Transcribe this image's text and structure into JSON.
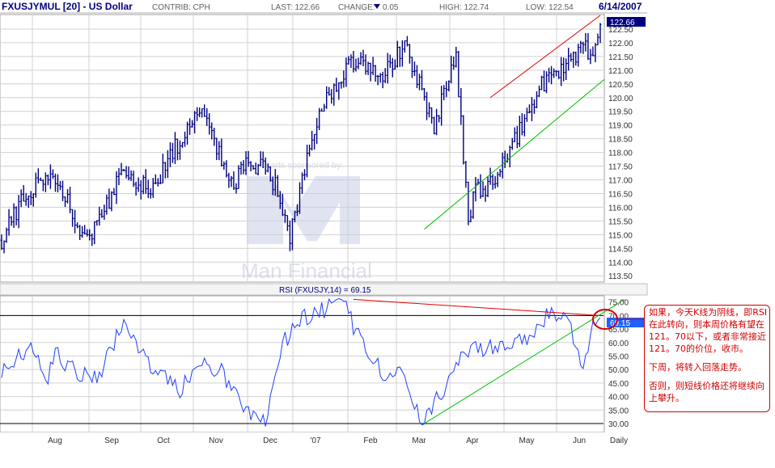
{
  "header": {
    "symbol": "FXUSJYMUL [20] - US Dollar",
    "contrib": "CONTRIB: CPH",
    "last": "LAST: 122.66",
    "change_label": "CHANGE:",
    "change_value": "0.05",
    "high": "HIGH: 122.74",
    "low": "LOW: 122.54",
    "date": "6/14/2007"
  },
  "colors": {
    "price": "#000080",
    "upper_channel": "#e00000",
    "lower_channel": "#00c000",
    "annotation": "#d00000",
    "grid": "#d0d0d0"
  },
  "watermark": {
    "sponsor": "Charts sponsored by:",
    "brand": "Man Financial"
  },
  "rsi_label": "RSI (FXUSJY,14) = 69.15",
  "last_price_tag": "122.66",
  "rsi_tag": "69.15",
  "x_period": "Daily",
  "note": {
    "p1": "如果，今天K线为阴线，即RSI在此转向，则本周价格有望在121。70以下，或者非常接近121。70的价位，收市。",
    "p2": "下周，将转入回落走势。",
    "p3": "否则，则短线价格还将继续向上攀升。"
  },
  "chart_data": [
    {
      "type": "line",
      "title": "FXUSJYMUL [20] - US Dollar",
      "y_ticks": [
        "113.50",
        "114.00",
        "114.50",
        "115.00",
        "115.50",
        "116.00",
        "116.50",
        "117.00",
        "117.50",
        "118.00",
        "118.50",
        "119.00",
        "119.50",
        "120.00",
        "120.50",
        "121.00",
        "121.50",
        "122.00",
        "122.50"
      ],
      "ylim": [
        113.3,
        123.0
      ],
      "x_ticks": [
        "Aug",
        "Sep",
        "Oct",
        "Nov",
        "Dec",
        "'07",
        "Feb",
        "Mar",
        "Apr",
        "May",
        "Jun",
        "Daily"
      ],
      "anchors_x": [
        0,
        8,
        20,
        35,
        50,
        62,
        80,
        95,
        100,
        108,
        113,
        118,
        122,
        130,
        140,
        147,
        155,
        165,
        177,
        186,
        191,
        194,
        198,
        206,
        215,
        222,
        228,
        238,
        243,
        245
      ],
      "anchors_y": [
        114.8,
        116.2,
        117.3,
        114.8,
        117.3,
        116.6,
        119.7,
        116.8,
        117.7,
        117.4,
        116.6,
        114.9,
        116.6,
        119.6,
        120.9,
        121.5,
        120.6,
        122.0,
        119.0,
        121.5,
        115.4,
        117.0,
        116.5,
        117.8,
        119.3,
        120.6,
        120.9,
        121.8,
        121.6,
        122.66
      ],
      "last": 122.66,
      "trendlines": [
        {
          "color": "red",
          "from": [
            200,
            120.0
          ],
          "to": [
            245,
            123.0
          ]
        },
        {
          "color": "green",
          "from": [
            173,
            115.2
          ],
          "to": [
            262,
            121.8
          ]
        }
      ]
    },
    {
      "type": "line",
      "title": "RSI (FXUSJY,14) = 69.15",
      "y_ticks": [
        "30.00",
        "35.00",
        "40.00",
        "45.00",
        "50.00",
        "55.00",
        "60.00",
        "65.00",
        "70.00",
        "75.00"
      ],
      "ylim": [
        27,
        77
      ],
      "anchors_x": [
        0,
        6,
        12,
        18,
        22,
        30,
        40,
        50,
        58,
        68,
        72,
        82,
        90,
        100,
        108,
        115,
        125,
        135,
        140,
        143,
        146,
        152,
        160,
        165,
        172,
        180,
        190,
        205,
        215,
        223,
        230,
        234,
        238,
        242,
        245
      ],
      "anchors_y": [
        48,
        53,
        61,
        45,
        56,
        49,
        48,
        68,
        55,
        46,
        42,
        52,
        49,
        35,
        30,
        60,
        70,
        73,
        76,
        68,
        63,
        52,
        47,
        49,
        30,
        42,
        56,
        60,
        62,
        70,
        71,
        62,
        50,
        68,
        69.15
      ],
      "last": 69.15,
      "horizontal_lines": [
        70,
        30
      ],
      "trendlines": [
        {
          "color": "red",
          "from": [
            144,
            76
          ],
          "to": [
            245,
            70
          ]
        },
        {
          "color": "green",
          "from": [
            173,
            30
          ],
          "to": [
            255,
            76
          ]
        }
      ]
    }
  ]
}
